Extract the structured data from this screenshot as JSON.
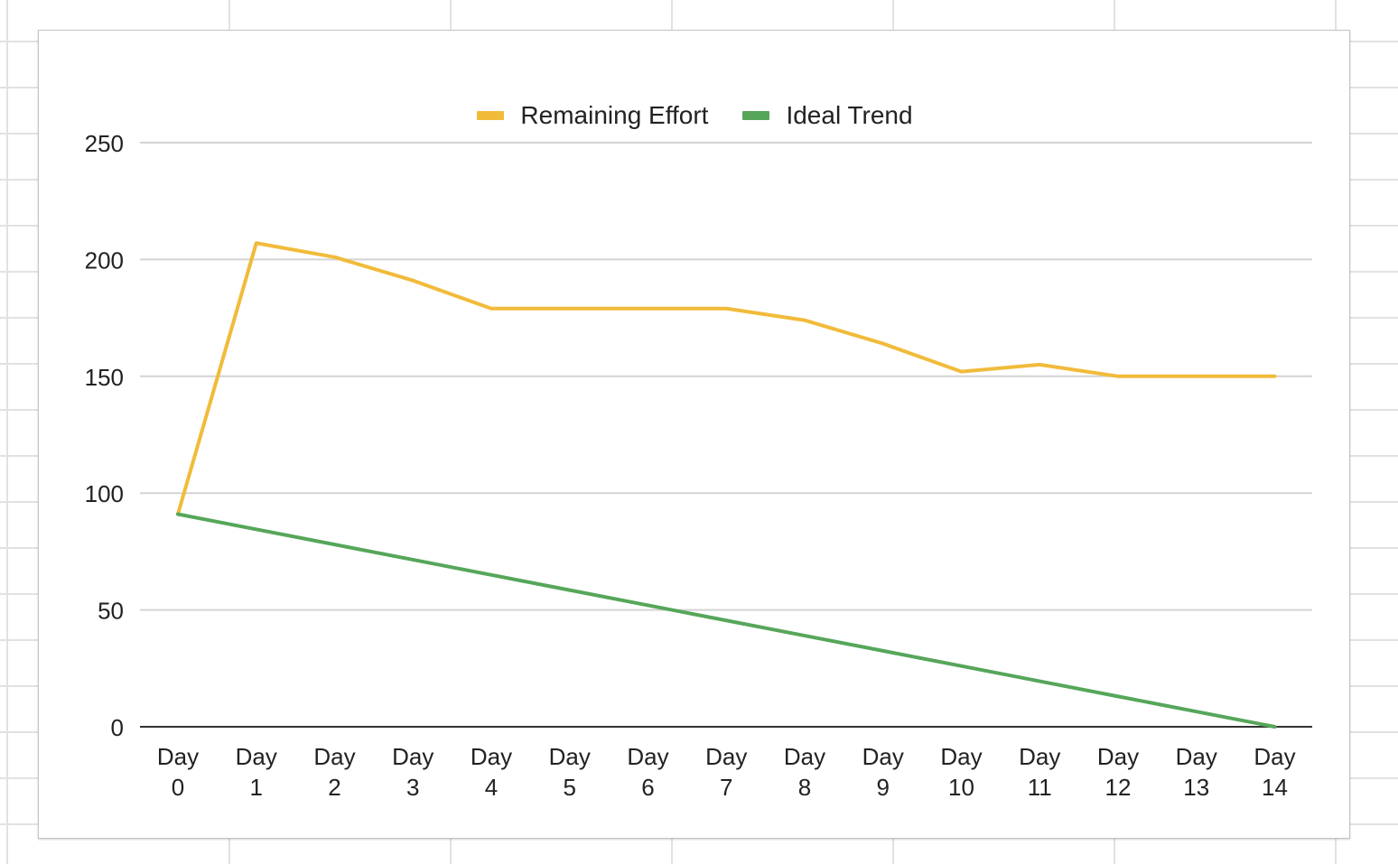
{
  "chart_data": {
    "type": "line",
    "title": "",
    "xlabel": "",
    "ylabel": "",
    "categories": [
      "Day 0",
      "Day 1",
      "Day 2",
      "Day 3",
      "Day 4",
      "Day 5",
      "Day 6",
      "Day 7",
      "Day 8",
      "Day 9",
      "Day 10",
      "Day 11",
      "Day 12",
      "Day 13",
      "Day 14"
    ],
    "category_lines": [
      [
        "Day",
        "0"
      ],
      [
        "Day",
        "1"
      ],
      [
        "Day",
        "2"
      ],
      [
        "Day",
        "3"
      ],
      [
        "Day",
        "4"
      ],
      [
        "Day",
        "5"
      ],
      [
        "Day",
        "6"
      ],
      [
        "Day",
        "7"
      ],
      [
        "Day",
        "8"
      ],
      [
        "Day",
        "9"
      ],
      [
        "Day",
        "10"
      ],
      [
        "Day",
        "11"
      ],
      [
        "Day",
        "12"
      ],
      [
        "Day",
        "13"
      ],
      [
        "Day",
        "14"
      ]
    ],
    "ylim": [
      0,
      250
    ],
    "yticks": [
      0,
      50,
      100,
      150,
      200,
      250
    ],
    "grid": true,
    "legend_position": "top",
    "series": [
      {
        "name": "Remaining Effort",
        "color": "#f1bb3a",
        "values": [
          91,
          207,
          201,
          191,
          179,
          179,
          179,
          179,
          174,
          164,
          152,
          155,
          150,
          150,
          150
        ]
      },
      {
        "name": "Ideal Trend",
        "color": "#56a65a",
        "values": [
          91,
          84.5,
          78,
          71.5,
          65,
          58.5,
          52,
          45.5,
          39,
          32.5,
          26,
          19.5,
          13,
          6.5,
          0
        ]
      }
    ]
  }
}
